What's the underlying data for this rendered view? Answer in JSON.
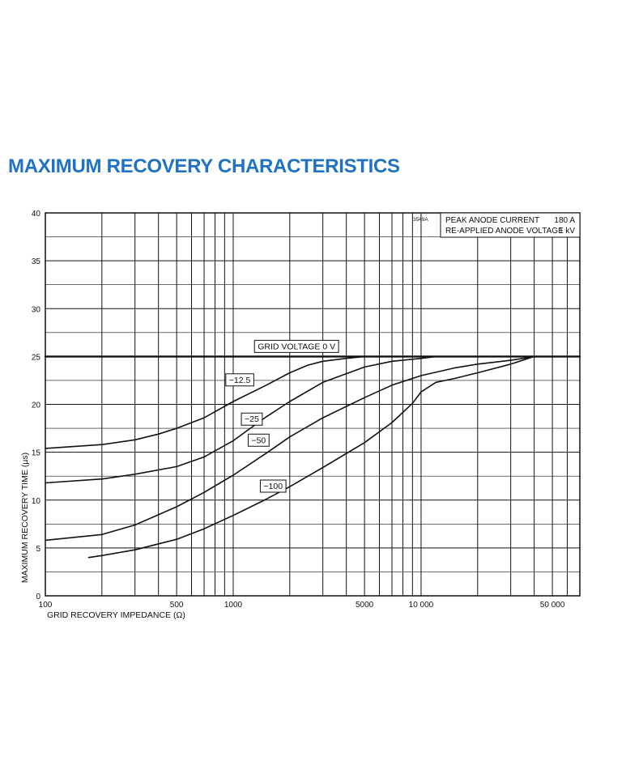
{
  "page_title": "MAXIMUM RECOVERY CHARACTERISTICS",
  "colors": {
    "title": "#1f72c4",
    "ink": "#111111"
  },
  "chart_data": {
    "type": "line",
    "title": "",
    "xlabel": "GRID RECOVERY IMPEDANCE (Ω)",
    "ylabel": "MAXIMUM RECOVERY TIME (µs)",
    "xscale": "log",
    "xlim": [
      100,
      70000
    ],
    "ylim": [
      0,
      40
    ],
    "grid": true,
    "x_tick_labels": [
      {
        "value": 100,
        "label": "100"
      },
      {
        "value": 500,
        "label": "500"
      },
      {
        "value": 1000,
        "label": "1000"
      },
      {
        "value": 5000,
        "label": "5000"
      },
      {
        "value": 10000,
        "label": "10 000"
      },
      {
        "value": 50000,
        "label": "50 000"
      }
    ],
    "y_ticks": [
      0,
      5,
      10,
      15,
      20,
      25,
      30,
      35,
      40
    ],
    "figure_code": "3549A",
    "conditions": [
      {
        "label": "PEAK ANODE CURRENT",
        "value": "180 A"
      },
      {
        "label": "RE-APPLIED ANODE VOLTAGE",
        "value": "1 kV"
      }
    ],
    "series": [
      {
        "name": "GRID VOLTAGE 0 V",
        "label_x": 1350,
        "label_y": 26.1,
        "points": [
          [
            100,
            25
          ],
          [
            70000,
            25
          ]
        ]
      },
      {
        "name": "−12.5",
        "label_x": 950,
        "label_y": 22.6,
        "points": [
          [
            100,
            15.4
          ],
          [
            200,
            15.8
          ],
          [
            300,
            16.3
          ],
          [
            400,
            16.9
          ],
          [
            500,
            17.5
          ],
          [
            700,
            18.6
          ],
          [
            1000,
            20.3
          ],
          [
            1500,
            22.0
          ],
          [
            2000,
            23.3
          ],
          [
            2500,
            24.1
          ],
          [
            3000,
            24.5
          ],
          [
            4000,
            24.8
          ],
          [
            5000,
            25
          ]
        ]
      },
      {
        "name": "−25",
        "label_x": 1150,
        "label_y": 18.5,
        "points": [
          [
            100,
            11.8
          ],
          [
            200,
            12.2
          ],
          [
            300,
            12.7
          ],
          [
            500,
            13.5
          ],
          [
            700,
            14.5
          ],
          [
            1000,
            16.2
          ],
          [
            1500,
            18.7
          ],
          [
            2000,
            20.3
          ],
          [
            3000,
            22.3
          ],
          [
            5000,
            23.9
          ],
          [
            7000,
            24.5
          ],
          [
            10000,
            24.8
          ],
          [
            12000,
            25
          ]
        ]
      },
      {
        "name": "−50",
        "label_x": 1250,
        "label_y": 16.3,
        "points": [
          [
            100,
            5.8
          ],
          [
            200,
            6.4
          ],
          [
            300,
            7.4
          ],
          [
            500,
            9.3
          ],
          [
            700,
            10.8
          ],
          [
            1000,
            12.6
          ],
          [
            1500,
            14.9
          ],
          [
            2000,
            16.6
          ],
          [
            3000,
            18.6
          ],
          [
            5000,
            20.7
          ],
          [
            7000,
            22.0
          ],
          [
            10000,
            23.0
          ],
          [
            15000,
            23.8
          ],
          [
            20000,
            24.2
          ],
          [
            30000,
            24.6
          ],
          [
            40000,
            25
          ]
        ]
      },
      {
        "name": "−100",
        "label_x": 1450,
        "label_y": 11.5,
        "points": [
          [
            170,
            4.0
          ],
          [
            200,
            4.2
          ],
          [
            300,
            4.8
          ],
          [
            500,
            5.9
          ],
          [
            700,
            7.0
          ],
          [
            1000,
            8.4
          ],
          [
            1500,
            10.1
          ],
          [
            2000,
            11.4
          ],
          [
            3000,
            13.4
          ],
          [
            5000,
            16.0
          ],
          [
            7000,
            18.1
          ],
          [
            9000,
            20.1
          ],
          [
            10000,
            21.3
          ],
          [
            12000,
            22.3
          ],
          [
            15000,
            22.7
          ],
          [
            20000,
            23.3
          ],
          [
            30000,
            24.2
          ],
          [
            40000,
            25
          ]
        ]
      }
    ]
  }
}
